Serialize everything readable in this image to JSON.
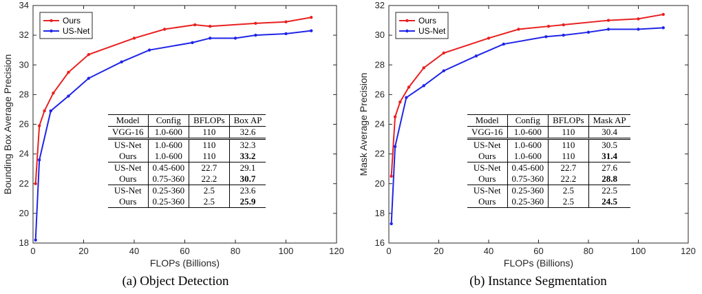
{
  "figure": {
    "panels": [
      {
        "caption": "(a)  Object Detection",
        "table": {
          "headers": [
            "Model",
            "Config",
            "BFLOPs",
            "Box AP"
          ],
          "rows": [
            [
              "VGG-16",
              "1.0-600",
              "110",
              "32.6"
            ],
            [
              "US-Net",
              "1.0-600",
              "110",
              "32.3"
            ],
            [
              "Ours",
              "1.0-600",
              "110",
              "33.2"
            ],
            [
              "US-Net",
              "0.45-600",
              "22.7",
              "29.1"
            ],
            [
              "Ours",
              "0.75-360",
              "22.2",
              "30.7"
            ],
            [
              "US-Net",
              "0.25-360",
              "2.5",
              "23.6"
            ],
            [
              "Ours",
              "0.25-360",
              "2.5",
              "25.9"
            ]
          ],
          "bold_rows": [
            2,
            4,
            6
          ]
        }
      },
      {
        "caption": "(b)  Instance Segmentation",
        "table": {
          "headers": [
            "Model",
            "Config",
            "BFLOPs",
            "Mask AP"
          ],
          "rows": [
            [
              "VGG-16",
              "1.0-600",
              "110",
              "30.4"
            ],
            [
              "US-Net",
              "1.0-600",
              "110",
              "30.5"
            ],
            [
              "Ours",
              "1.0-600",
              "110",
              "31.4"
            ],
            [
              "US-Net",
              "0.45-600",
              "22.7",
              "27.6"
            ],
            [
              "Ours",
              "0.75-360",
              "22.2",
              "28.8"
            ],
            [
              "US-Net",
              "0.25-360",
              "2.5",
              "22.5"
            ],
            [
              "Ours",
              "0.25-360",
              "2.5",
              "24.5"
            ]
          ],
          "bold_rows": [
            2,
            4,
            6
          ]
        }
      }
    ]
  },
  "chart_data": [
    {
      "type": "line",
      "title": "",
      "xlabel": "FLOPs (Billions)",
      "ylabel": "Bounding Box Average Precision",
      "xlim": [
        0,
        120
      ],
      "ylim": [
        18,
        34
      ],
      "xticks": [
        0,
        20,
        40,
        60,
        80,
        100,
        120
      ],
      "yticks": [
        18,
        20,
        22,
        24,
        26,
        28,
        30,
        32,
        34
      ],
      "grid": false,
      "legend_position": "top-left",
      "series": [
        {
          "name": "Ours",
          "color": "#e8201f",
          "x": [
            1,
            2.5,
            4.5,
            8,
            14,
            22,
            40,
            52,
            64,
            70,
            88,
            100,
            110
          ],
          "y": [
            22.0,
            25.9,
            26.9,
            28.1,
            29.5,
            30.7,
            31.8,
            32.4,
            32.7,
            32.6,
            32.8,
            32.9,
            33.2
          ]
        },
        {
          "name": "US-Net",
          "color": "#1f24e8",
          "x": [
            1,
            2.5,
            7,
            14,
            22,
            35,
            46,
            63,
            70,
            80,
            88,
            100,
            110
          ],
          "y": [
            18.2,
            23.6,
            26.9,
            27.9,
            29.1,
            30.2,
            31.0,
            31.5,
            31.8,
            31.8,
            32.0,
            32.1,
            32.3
          ]
        }
      ]
    },
    {
      "type": "line",
      "title": "",
      "xlabel": "FLOPs (Billions)",
      "ylabel": "Mask Average Precision",
      "xlim": [
        0,
        120
      ],
      "ylim": [
        16,
        32
      ],
      "xticks": [
        0,
        20,
        40,
        60,
        80,
        100,
        120
      ],
      "yticks": [
        16,
        18,
        20,
        22,
        24,
        26,
        28,
        30,
        32
      ],
      "grid": false,
      "legend_position": "top-left",
      "series": [
        {
          "name": "Ours",
          "color": "#e8201f",
          "x": [
            1,
            2.5,
            4.5,
            8,
            14,
            22,
            40,
            52,
            64,
            70,
            88,
            100,
            110
          ],
          "y": [
            20.5,
            24.5,
            25.5,
            26.5,
            27.8,
            28.8,
            29.8,
            30.4,
            30.6,
            30.7,
            31.0,
            31.1,
            31.4
          ]
        },
        {
          "name": "US-Net",
          "color": "#1f24e8",
          "x": [
            1,
            2.5,
            7,
            14,
            22,
            35,
            46,
            63,
            70,
            80,
            88,
            100,
            110
          ],
          "y": [
            17.3,
            22.5,
            25.8,
            26.6,
            27.6,
            28.6,
            29.4,
            29.9,
            30.0,
            30.2,
            30.4,
            30.4,
            30.5
          ]
        }
      ]
    }
  ]
}
